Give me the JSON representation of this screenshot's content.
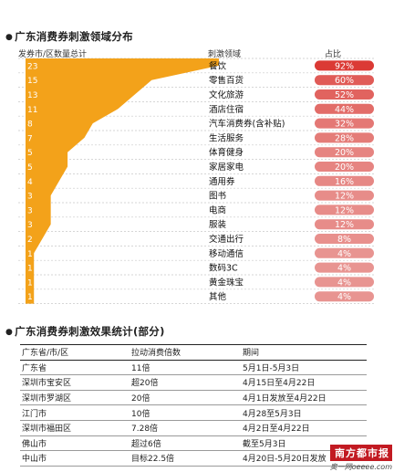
{
  "headers": {
    "title1": "广东消费券刺激领域分布",
    "title2": "广东消费券刺激效果统计(部分)",
    "left_col": "发券市/区数量总计",
    "mid_col": "刺激领域",
    "right_col": "占比"
  },
  "chart_data": {
    "type": "bar",
    "categories": [
      "餐饮",
      "零售百货",
      "文化旅游",
      "酒店住宿",
      "汽车消费券(含补贴)",
      "生活服务",
      "体育健身",
      "家居家电",
      "通用券",
      "图书",
      "电商",
      "服装",
      "交通出行",
      "移动通信",
      "数码3C",
      "黄金珠宝",
      "其他"
    ],
    "counts": [
      23,
      15,
      13,
      11,
      8,
      7,
      5,
      5,
      4,
      3,
      3,
      3,
      2,
      1,
      1,
      1,
      1
    ],
    "series": [
      {
        "values": [
          92,
          60,
          52,
          44,
          32,
          28,
          20,
          20,
          16,
          12,
          12,
          12,
          8,
          4,
          4,
          4,
          4
        ]
      }
    ],
    "percent_labels": [
      "92%",
      "60%",
      "52%",
      "44%",
      "32%",
      "28%",
      "20%",
      "20%",
      "16%",
      "12%",
      "12%",
      "12%",
      "8%",
      "4%",
      "4%",
      "4%",
      "4%"
    ],
    "colors": {
      "area": "#f3a21a",
      "bar": "#d9322c",
      "grid": "#c9c9c9"
    }
  },
  "table": {
    "columns": [
      "广东省/市/区",
      "拉动消费倍数",
      "期间"
    ],
    "rows": [
      [
        "广东省",
        "11倍",
        "5月1日-5月3日"
      ],
      [
        "深圳市宝安区",
        "超20倍",
        "4月15日至4月22日"
      ],
      [
        "深圳市罗湖区",
        "20倍",
        "4月1日发放至4月22日"
      ],
      [
        "江门市",
        "10倍",
        "4月28至5月3日"
      ],
      [
        "深圳市福田区",
        "7.28倍",
        "4月2日至4月22日"
      ],
      [
        "佛山市",
        "超过6倍",
        "截至5月3日"
      ],
      [
        "中山市",
        "目标22.5倍",
        "4月20日-5月20日发放"
      ]
    ]
  },
  "watermark": {
    "brand": "南方都市报",
    "site": "奥一网oeeee.com"
  }
}
